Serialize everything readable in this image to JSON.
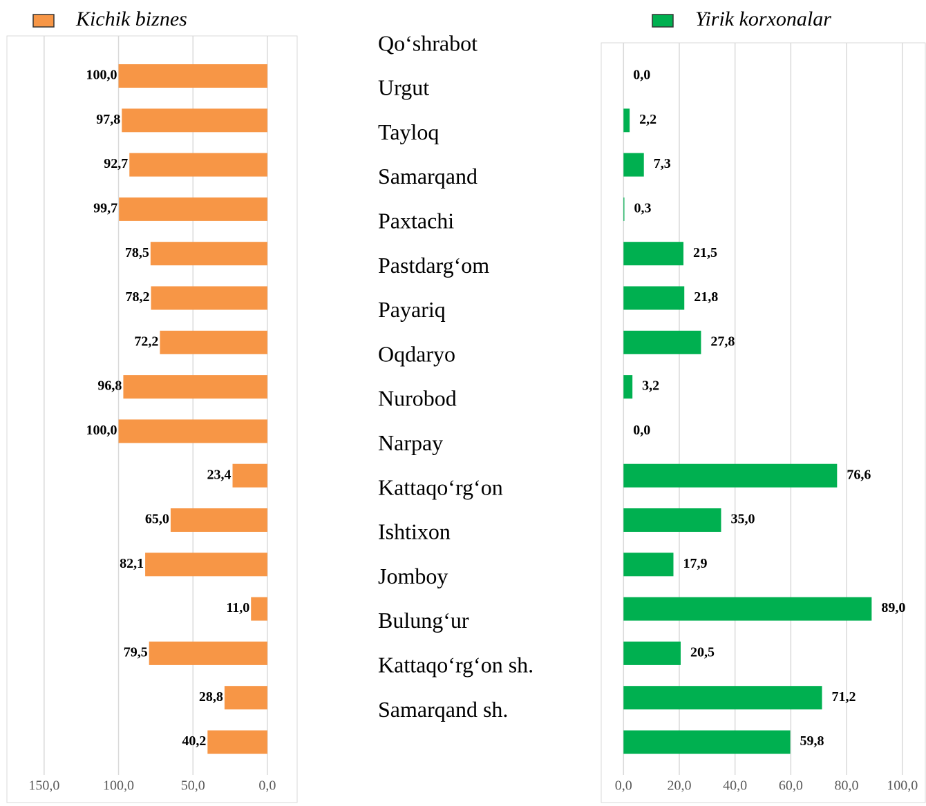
{
  "chart_data": [
    {
      "type": "bar",
      "orientation": "horizontal",
      "categories": [
        "Qo‘shrabot",
        "Urgut",
        "Tayloq",
        "Samarqand",
        "Paxtachi",
        "Pastdarg‘om",
        "Payariq",
        "Oqdaryo",
        "Nurobod",
        "Narpay",
        "Kattaqo‘rg‘on",
        "Ishtixon",
        "Jomboy",
        "Bulung‘ur",
        "Kattaqo‘rg‘on sh.",
        "Samarqand sh."
      ],
      "series": [
        {
          "name": "Kichik biznes",
          "color": "#f79646",
          "values": [
            100.0,
            97.8,
            92.7,
            99.7,
            78.5,
            78.2,
            72.2,
            96.8,
            100.0,
            23.4,
            65.0,
            82.1,
            11.0,
            79.5,
            28.8,
            40.2
          ],
          "value_labels": [
            "100,0",
            "97,8",
            "92,7",
            "99,7",
            "78,5",
            "78,2",
            "72,2",
            "96,8",
            "100,0",
            "23,4",
            "65,0",
            "82,1",
            "11,0",
            "79,5",
            "28,8",
            "40,2"
          ]
        }
      ],
      "xlim": [
        175,
        -20
      ],
      "xticks": [
        {
          "value": 150,
          "label": "150,0"
        },
        {
          "value": 100,
          "label": "100,0"
        },
        {
          "value": 50,
          "label": "50,0"
        },
        {
          "value": 0,
          "label": "0,0"
        }
      ],
      "grid": true,
      "legend": "top-left"
    },
    {
      "type": "bar",
      "orientation": "horizontal",
      "series": [
        {
          "name": "Yirik korxonalar",
          "color": "#00b050",
          "values": [
            0.0,
            2.2,
            7.3,
            0.3,
            21.5,
            21.8,
            27.8,
            3.2,
            0.0,
            76.6,
            35.0,
            17.9,
            89.0,
            20.5,
            71.2,
            59.8
          ],
          "value_labels": [
            "0,0",
            "2,2",
            "7,3",
            "0,3",
            "21,5",
            "21,8",
            "27,8",
            "3,2",
            "0,0",
            "76,6",
            "35,0",
            "17,9",
            "89,0",
            "20,5",
            "71,2",
            "59,8"
          ]
        }
      ],
      "xlim": [
        -8,
        108
      ],
      "xticks": [
        {
          "value": 0,
          "label": "0,0"
        },
        {
          "value": 20,
          "label": "20,0"
        },
        {
          "value": 40,
          "label": "40,0"
        },
        {
          "value": 60,
          "label": "60,0"
        },
        {
          "value": 80,
          "label": "80,0"
        },
        {
          "value": 100,
          "label": "100,0"
        }
      ],
      "grid": true,
      "legend": "top-right"
    }
  ]
}
